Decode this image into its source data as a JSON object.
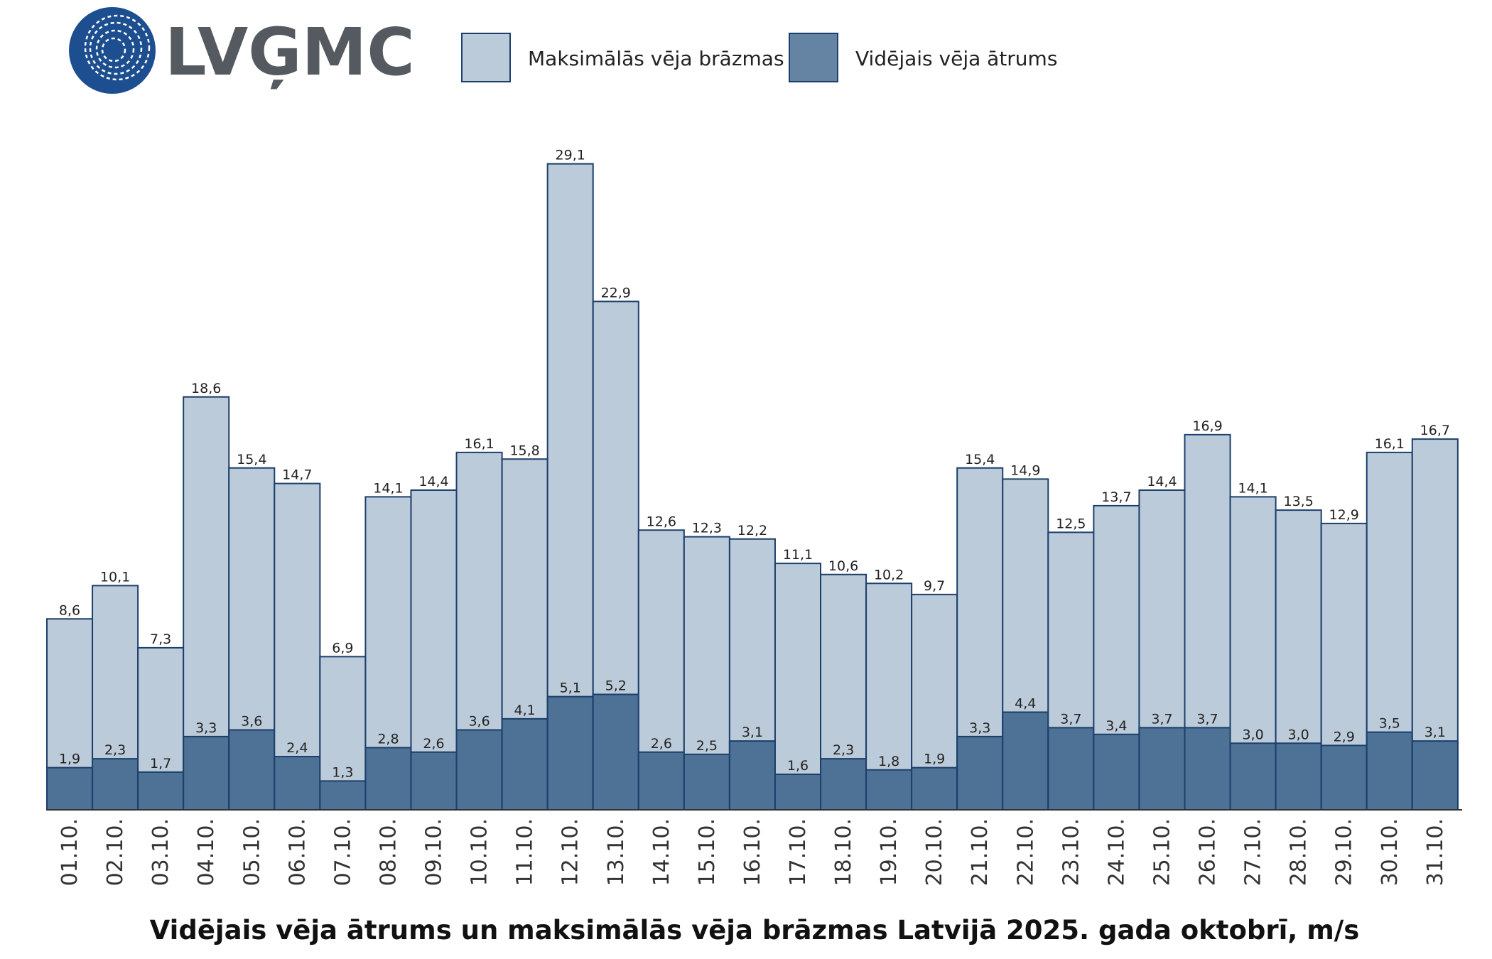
{
  "logo": {
    "text": "LVĢMC"
  },
  "colors": {
    "gust_fill": "#bccbd9",
    "mean_fill": "#4e7196",
    "bar_stroke": "#1c3f6b",
    "logo_blue": "#1d4e8f",
    "axis": "#333333"
  },
  "chart_data": {
    "type": "bar",
    "title": "Vidējais vēja ātrums un maksimālās vēja brāzmas Latvijā 2025. gada oktobrī, m/s",
    "xlabel": "",
    "ylabel": "",
    "ylim": [
      0,
      29.1
    ],
    "grid": false,
    "legend_position": "top",
    "categories": [
      "01.10.",
      "02.10.",
      "03.10.",
      "04.10.",
      "05.10.",
      "06.10.",
      "07.10.",
      "08.10.",
      "09.10.",
      "10.10.",
      "11.10.",
      "12.10.",
      "13.10.",
      "14.10.",
      "15.10.",
      "16.10.",
      "17.10.",
      "18.10.",
      "19.10.",
      "20.10.",
      "21.10.",
      "22.10.",
      "23.10.",
      "24.10.",
      "25.10.",
      "26.10.",
      "27.10.",
      "28.10.",
      "29.10.",
      "30.10.",
      "31.10."
    ],
    "series": [
      {
        "name": "Maksimālās vēja brāzmas",
        "values": [
          8.6,
          10.1,
          7.3,
          18.6,
          15.4,
          14.7,
          6.9,
          14.1,
          14.4,
          16.1,
          15.8,
          29.1,
          22.9,
          12.6,
          12.3,
          12.2,
          11.1,
          10.6,
          10.2,
          9.7,
          15.4,
          14.9,
          12.5,
          13.7,
          14.4,
          16.9,
          14.1,
          13.5,
          12.9,
          16.1,
          16.7
        ],
        "labels": [
          "8,6",
          "10,1",
          "7,3",
          "18,6",
          "15,4",
          "14,7",
          "6,9",
          "14,1",
          "14,4",
          "16,1",
          "15,8",
          "29,1",
          "22,9",
          "12,6",
          "12,3",
          "12,2",
          "11,1",
          "10,6",
          "10,2",
          "9,7",
          "15,4",
          "14,9",
          "12,5",
          "13,7",
          "14,4",
          "16,9",
          "14,1",
          "13,5",
          "12,9",
          "16,1",
          "16,7"
        ]
      },
      {
        "name": "Vidējais vēja ātrums",
        "values": [
          1.9,
          2.3,
          1.7,
          3.3,
          3.6,
          2.4,
          1.3,
          2.8,
          2.6,
          3.6,
          4.1,
          5.1,
          5.2,
          2.6,
          2.5,
          3.1,
          1.6,
          2.3,
          1.8,
          1.9,
          3.3,
          4.4,
          3.7,
          3.4,
          3.7,
          3.7,
          3.0,
          3.0,
          2.9,
          3.5,
          3.1
        ],
        "labels": [
          "1,9",
          "2,3",
          "1,7",
          "3,3",
          "3,6",
          "2,4",
          "1,3",
          "2,8",
          "2,6",
          "3,6",
          "4,1",
          "5,1",
          "5,2",
          "2,6",
          "2,5",
          "3,1",
          "1,6",
          "2,3",
          "1,8",
          "1,9",
          "3,3",
          "4,4",
          "3,7",
          "3,4",
          "3,7",
          "3,7",
          "3,0",
          "3,0",
          "2,9",
          "3,5",
          "3,1"
        ]
      }
    ]
  }
}
